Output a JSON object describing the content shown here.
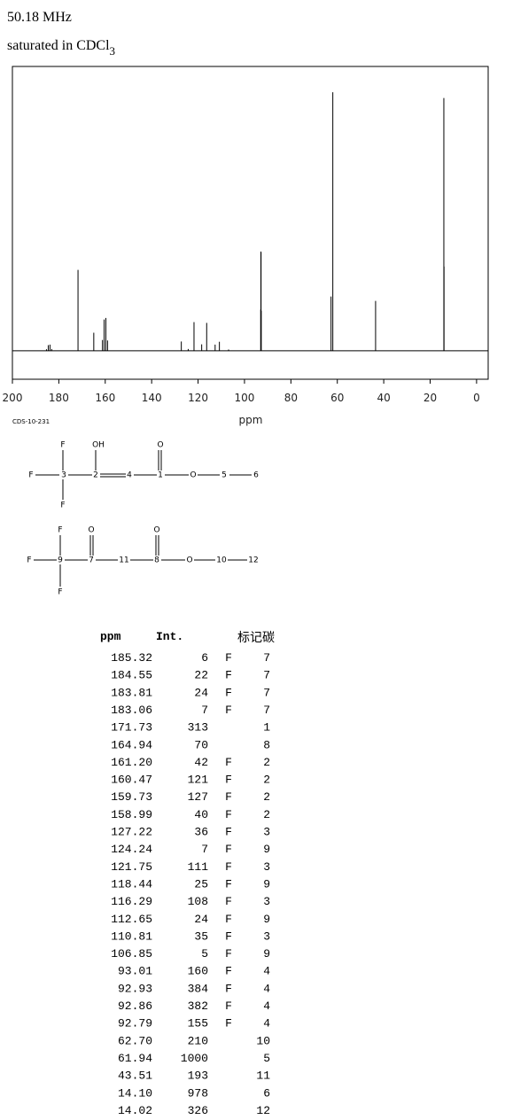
{
  "header": {
    "frequency": "50.18 MHz",
    "solvent": "saturated in CDCl",
    "solvent_subscript": "3"
  },
  "chart_data": {
    "type": "stem",
    "xlabel": "ppm",
    "color": "#000000",
    "x": [
      185.32,
      184.55,
      183.81,
      183.06,
      171.73,
      164.94,
      161.2,
      160.47,
      159.73,
      158.99,
      127.22,
      124.24,
      121.75,
      118.44,
      116.29,
      112.65,
      110.81,
      106.85,
      93.01,
      92.93,
      92.86,
      92.79,
      62.7,
      61.94,
      43.51,
      14.1,
      14.02
    ],
    "values": [
      6,
      22,
      24,
      7,
      313,
      70,
      42,
      121,
      127,
      40,
      36,
      7,
      111,
      25,
      108,
      24,
      35,
      5,
      160,
      384,
      382,
      155,
      210,
      1000,
      193,
      978,
      326
    ],
    "xlim": [
      200,
      -5
    ],
    "xticks": [
      200,
      180,
      160,
      140,
      120,
      100,
      80,
      60,
      40,
      20,
      0
    ],
    "ylim": [
      -110,
      1100
    ]
  },
  "code": "CDS-10-231",
  "diagrams": [
    {
      "atoms": [
        "F",
        "OH",
        "O",
        "F",
        "3",
        "2",
        "4",
        "1",
        "O",
        "5",
        "6",
        "F"
      ]
    },
    {
      "atoms": [
        "F",
        "O",
        "O",
        "F",
        "9",
        "7",
        "11",
        "8",
        "O",
        "10",
        "12",
        "F"
      ]
    }
  ],
  "table": {
    "header": [
      "ppm",
      "Int.",
      "标记碳"
    ],
    "rows": [
      {
        "ppm": "185.32",
        "int": "6",
        "flag": "F",
        "carbon": "7"
      },
      {
        "ppm": "184.55",
        "int": "22",
        "flag": "F",
        "carbon": "7"
      },
      {
        "ppm": "183.81",
        "int": "24",
        "flag": "F",
        "carbon": "7"
      },
      {
        "ppm": "183.06",
        "int": "7",
        "flag": "F",
        "carbon": "7"
      },
      {
        "ppm": "171.73",
        "int": "313",
        "carbon": "1"
      },
      {
        "ppm": "164.94",
        "int": "70",
        "carbon": "8"
      },
      {
        "ppm": "161.20",
        "int": "42",
        "flag": "F",
        "carbon": "2"
      },
      {
        "ppm": "160.47",
        "int": "121",
        "flag": "F",
        "carbon": "2"
      },
      {
        "ppm": "159.73",
        "int": "127",
        "flag": "F",
        "carbon": "2"
      },
      {
        "ppm": "158.99",
        "int": "40",
        "flag": "F",
        "carbon": "2"
      },
      {
        "ppm": "127.22",
        "int": "36",
        "flag": "F",
        "carbon": "3"
      },
      {
        "ppm": "124.24",
        "int": "7",
        "flag": "F",
        "carbon": "9"
      },
      {
        "ppm": "121.75",
        "int": "111",
        "flag": "F",
        "carbon": "3"
      },
      {
        "ppm": "118.44",
        "int": "25",
        "flag": "F",
        "carbon": "9"
      },
      {
        "ppm": "116.29",
        "int": "108",
        "flag": "F",
        "carbon": "3"
      },
      {
        "ppm": "112.65",
        "int": "24",
        "flag": "F",
        "carbon": "9"
      },
      {
        "ppm": "110.81",
        "int": "35",
        "flag": "F",
        "carbon": "3"
      },
      {
        "ppm": "106.85",
        "int": "5",
        "flag": "F",
        "carbon": "9"
      },
      {
        "ppm": "93.01",
        "int": "160",
        "flag": "F",
        "carbon": "4"
      },
      {
        "ppm": "92.93",
        "int": "384",
        "flag": "F",
        "carbon": "4"
      },
      {
        "ppm": "92.86",
        "int": "382",
        "flag": "F",
        "carbon": "4"
      },
      {
        "ppm": "92.79",
        "int": "155",
        "flag": "F",
        "carbon": "4"
      },
      {
        "ppm": "62.70",
        "int": "210",
        "carbon": "10"
      },
      {
        "ppm": "61.94",
        "int": "1000",
        "carbon": "5"
      },
      {
        "ppm": "43.51",
        "int": "193",
        "carbon": "11"
      },
      {
        "ppm": "14.10",
        "int": "978",
        "carbon": "6"
      },
      {
        "ppm": "14.02",
        "int": "326",
        "carbon": "12"
      }
    ]
  }
}
